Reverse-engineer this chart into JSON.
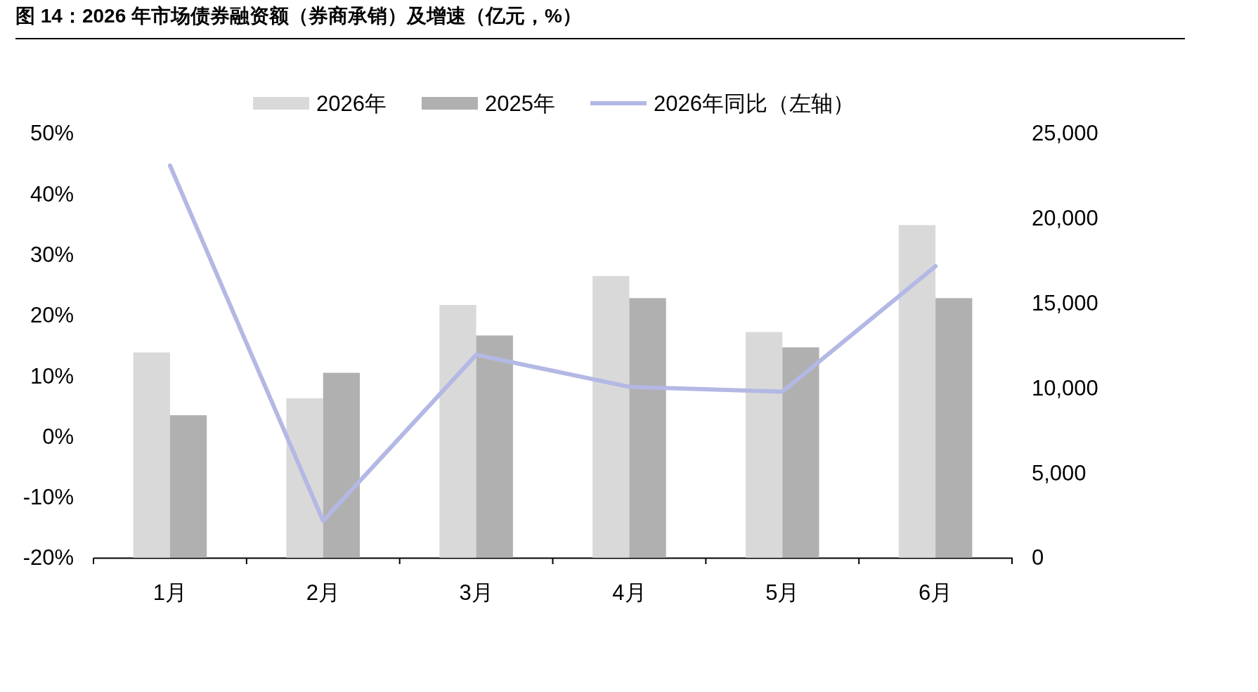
{
  "chart_data": {
    "type": "bar",
    "title": "图 14：2026 年市场债券融资额（券商承销）及增速（亿元，%）",
    "categories": [
      "1月",
      "2月",
      "3月",
      "4月",
      "5月",
      "6月"
    ],
    "series": [
      {
        "name": "2026年",
        "color": "#d9d9d9",
        "axis": "y2",
        "values": [
          12100,
          9400,
          14900,
          16600,
          13300,
          19600
        ]
      },
      {
        "name": "2025年",
        "color": "#b0b0b0",
        "axis": "y2",
        "values": [
          8400,
          10900,
          13100,
          15300,
          12400,
          15300
        ]
      },
      {
        "name": "2026年同比（左轴）",
        "type": "line",
        "color": "#b4b8e4",
        "values": [
          44.7,
          -13.9,
          13.5,
          8.2,
          7.4,
          28.1
        ]
      }
    ],
    "ylim": [
      -20,
      50
    ],
    "yticks": [
      {
        "value": -20,
        "label": "-20%"
      },
      {
        "value": -10,
        "label": "-10%"
      },
      {
        "value": 0,
        "label": "0%"
      },
      {
        "value": 10,
        "label": "10%"
      },
      {
        "value": 20,
        "label": "20%"
      },
      {
        "value": 30,
        "label": "30%"
      },
      {
        "value": 40,
        "label": "40%"
      },
      {
        "value": 50,
        "label": "50%"
      }
    ],
    "y2lim": [
      0,
      25000
    ],
    "y2ticks": [
      0,
      {
        "value": 5000,
        "label": "5,000"
      },
      {
        "value": 10000,
        "label": "10,000"
      },
      {
        "value": 15000,
        "label": "15,000"
      },
      {
        "value": 20000,
        "label": "20,000"
      },
      {
        "value": 25000,
        "label": "25,000"
      }
    ],
    "legend": "top",
    "line_style": "solid"
  }
}
